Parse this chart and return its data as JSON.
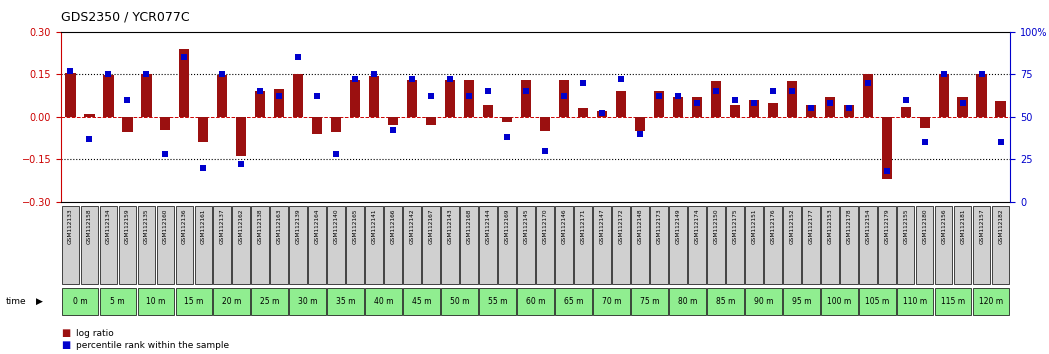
{
  "title": "GDS2350 / YCR077C",
  "samples": [
    "GSM112133",
    "GSM112158",
    "GSM112134",
    "GSM112159",
    "GSM112135",
    "GSM112160",
    "GSM112136",
    "GSM112161",
    "GSM112137",
    "GSM112162",
    "GSM112138",
    "GSM112163",
    "GSM112139",
    "GSM112164",
    "GSM112140",
    "GSM112165",
    "GSM112141",
    "GSM112166",
    "GSM112142",
    "GSM112167",
    "GSM112143",
    "GSM112168",
    "GSM112144",
    "GSM112169",
    "GSM112145",
    "GSM112170",
    "GSM112146",
    "GSM112171",
    "GSM112147",
    "GSM112172",
    "GSM112148",
    "GSM112173",
    "GSM112149",
    "GSM112174",
    "GSM112150",
    "GSM112175",
    "GSM112151",
    "GSM112176",
    "GSM112152",
    "GSM112177",
    "GSM112153",
    "GSM112178",
    "GSM112154",
    "GSM112179",
    "GSM112155",
    "GSM112180",
    "GSM112156",
    "GSM112181",
    "GSM112157",
    "GSM112182"
  ],
  "time_labels": [
    "0 m",
    "5 m",
    "10 m",
    "15 m",
    "20 m",
    "25 m",
    "30 m",
    "35 m",
    "40 m",
    "45 m",
    "50 m",
    "55 m",
    "60 m",
    "65 m",
    "70 m",
    "75 m",
    "80 m",
    "85 m",
    "90 m",
    "95 m",
    "100 m",
    "105 m",
    "110 m",
    "115 m",
    "120 m"
  ],
  "log_ratio": [
    0.155,
    0.01,
    0.148,
    -0.055,
    0.152,
    -0.045,
    0.24,
    -0.09,
    0.148,
    -0.14,
    0.09,
    0.1,
    0.152,
    -0.06,
    -0.055,
    0.13,
    0.145,
    -0.03,
    0.13,
    -0.03,
    0.13,
    0.13,
    0.04,
    -0.02,
    0.13,
    -0.05,
    0.13,
    0.03,
    0.02,
    0.09,
    -0.05,
    0.09,
    0.07,
    0.07,
    0.125,
    0.04,
    0.06,
    0.05,
    0.125,
    0.04,
    0.07,
    0.04,
    0.15,
    -0.22,
    0.035,
    -0.04,
    0.15,
    0.07,
    0.15,
    0.055
  ],
  "percentile": [
    77,
    37,
    75,
    60,
    75,
    28,
    85,
    20,
    75,
    22,
    65,
    62,
    85,
    62,
    28,
    72,
    75,
    42,
    72,
    62,
    72,
    62,
    65,
    38,
    65,
    30,
    62,
    70,
    52,
    72,
    40,
    62,
    62,
    58,
    65,
    60,
    58,
    65,
    65,
    55,
    58,
    55,
    70,
    18,
    60,
    35,
    75,
    58,
    75,
    35
  ],
  "bar_color": "#9B1010",
  "dot_color": "#0000CC",
  "bar_width": 0.55,
  "ylim_left": [
    -0.3,
    0.3
  ],
  "ylim_right": [
    0,
    100
  ],
  "yticks_left": [
    -0.3,
    -0.15,
    0.0,
    0.15,
    0.3
  ],
  "yticks_right": [
    0,
    25,
    50,
    75,
    100
  ],
  "hline_dotted": [
    -0.15,
    0.15
  ],
  "hline_dashed": [
    0.0
  ],
  "background_color": "#ffffff",
  "left_axis_color": "#CC0000",
  "right_axis_color": "#0000CC",
  "legend_log_ratio": "log ratio",
  "legend_percentile": "percentile rank within the sample",
  "time_row_color": "#90EE90",
  "sample_row_color": "#D0D0D0",
  "fig_width": 10.49,
  "fig_height": 3.54
}
